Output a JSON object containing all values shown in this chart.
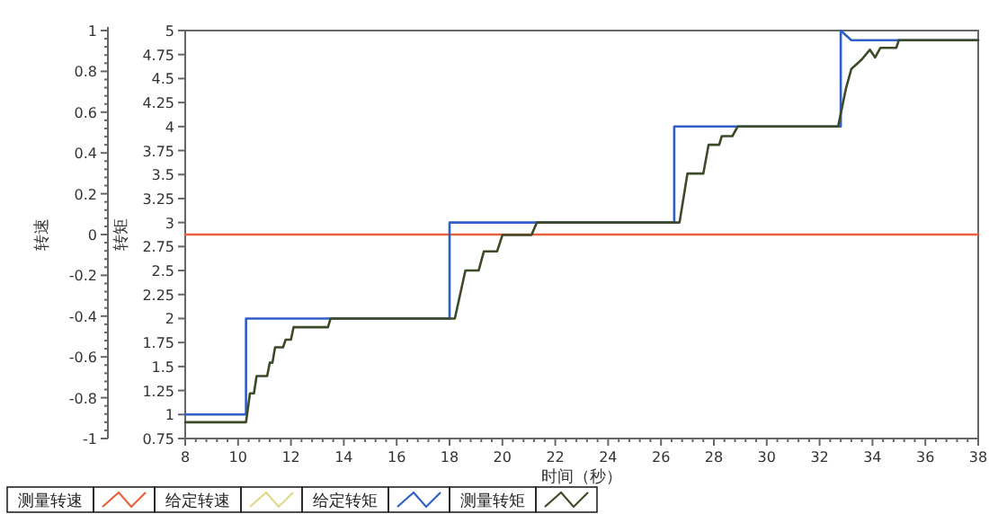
{
  "chart_data": {
    "type": "line",
    "xlabel": "时间（秒）",
    "ylabel": "转速",
    "y2label": "转矩",
    "xlim": [
      8,
      38
    ],
    "xticks": [
      8,
      10,
      12,
      14,
      16,
      18,
      20,
      22,
      24,
      26,
      28,
      30,
      32,
      34,
      36,
      38
    ],
    "ylim": [
      -1,
      1
    ],
    "yticks": [
      -1,
      -0.8,
      -0.6,
      -0.4,
      -0.2,
      0,
      0.2,
      0.4,
      0.6,
      0.8,
      1
    ],
    "y2lim": [
      0.75,
      5
    ],
    "y2ticks": [
      0.75,
      1,
      1.25,
      1.5,
      1.75,
      2,
      2.25,
      2.5,
      2.75,
      3,
      3.25,
      3.5,
      3.75,
      4,
      4.25,
      4.5,
      4.75,
      5
    ],
    "legend": "bottom",
    "grid": false,
    "marker": "none",
    "line_style": "solid",
    "series": [
      {
        "name": "测量转速",
        "color": "#e8603c",
        "x": [
          8,
          38
        ],
        "values": [
          0,
          0
        ]
      },
      {
        "name": "给定转速",
        "color": "#e0d88a"
      },
      {
        "name": "给定转矩",
        "color": "#2f5fc8",
        "axis": "y2",
        "x": [
          8,
          10.3,
          10.3,
          18.0,
          18.0,
          26.5,
          26.5,
          32.8,
          32.8,
          33.2,
          38
        ],
        "values": [
          1,
          1,
          2,
          2,
          3,
          3,
          4,
          4,
          5,
          4.9,
          4.9
        ]
      },
      {
        "name": "测量转矩",
        "color": "#3c4a28",
        "axis": "y2",
        "x": [
          8,
          10.3,
          10.45,
          10.6,
          10.7,
          11.1,
          11.2,
          11.3,
          11.4,
          11.7,
          11.8,
          12.0,
          12.1,
          13.4,
          13.5,
          18.2,
          18.4,
          18.6,
          19.1,
          19.3,
          19.8,
          20.0,
          21.1,
          21.3,
          26.7,
          27.0,
          27.6,
          27.8,
          28.2,
          28.3,
          28.7,
          28.9,
          32.7,
          33.0,
          33.2,
          33.6,
          33.9,
          34.1,
          34.3,
          34.9,
          35.0,
          38
        ],
        "values": [
          0.92,
          0.92,
          1.22,
          1.22,
          1.4,
          1.4,
          1.54,
          1.54,
          1.7,
          1.7,
          1.78,
          1.78,
          1.91,
          1.91,
          2,
          2,
          2.25,
          2.5,
          2.5,
          2.7,
          2.7,
          2.87,
          2.87,
          3,
          3,
          3.51,
          3.51,
          3.81,
          3.81,
          3.9,
          3.9,
          4,
          4,
          4.4,
          4.6,
          4.7,
          4.8,
          4.72,
          4.82,
          4.82,
          4.9,
          4.9
        ]
      }
    ]
  }
}
